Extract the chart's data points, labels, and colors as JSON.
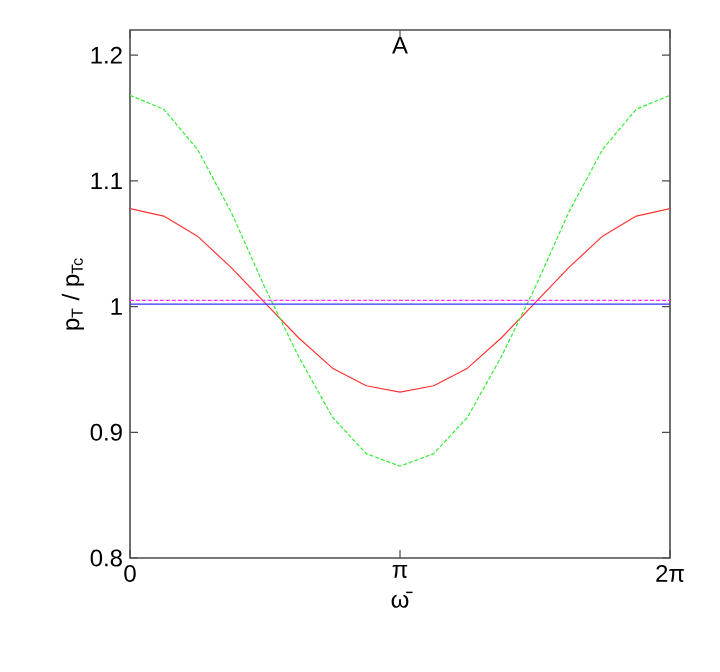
{
  "chart_data": {
    "type": "line",
    "title": "A",
    "xlabel": "ω̄",
    "ylabel": "p$_{T}$ / p$_{Tc}$",
    "xlim": [
      0,
      6.2832
    ],
    "ylim": [
      0.8,
      1.22
    ],
    "xticks": [
      0,
      {
        "value": 3.1416,
        "label": "π"
      },
      {
        "value": 6.2832,
        "label": "2π"
      }
    ],
    "yticks": [
      0.8,
      0.9,
      1,
      1.1,
      1.2
    ],
    "x": [
      0,
      0.3927,
      0.7854,
      1.1781,
      1.5708,
      1.9635,
      2.3562,
      2.7489,
      3.1416,
      3.5343,
      3.927,
      4.3197,
      4.7124,
      5.1051,
      5.4978,
      5.8905,
      6.2832
    ],
    "series": [
      {
        "color": "#ff3333",
        "line_style": "solid",
        "values": [
          1.078,
          1.072,
          1.056,
          1.031,
          1.003,
          0.975,
          0.951,
          0.937,
          0.932,
          0.937,
          0.951,
          0.975,
          1.003,
          1.031,
          1.056,
          1.072,
          1.078
        ]
      },
      {
        "color": "#33ee33",
        "line_style": "dashed",
        "values": [
          1.168,
          1.157,
          1.125,
          1.075,
          1.015,
          0.96,
          0.912,
          0.883,
          0.873,
          0.883,
          0.912,
          0.96,
          1.015,
          1.075,
          1.125,
          1.157,
          1.168
        ]
      },
      {
        "color": "#ff33ff",
        "line_style": "dashed",
        "values": [
          1.005,
          1.005,
          1.005,
          1.005,
          1.005,
          1.005,
          1.005,
          1.005,
          1.005,
          1.005,
          1.005,
          1.005,
          1.005,
          1.005,
          1.005,
          1.005,
          1.005
        ]
      },
      {
        "color": "#3333ff",
        "line_style": "solid",
        "values": [
          1.002,
          1.002,
          1.002,
          1.002,
          1.002,
          1.002,
          1.002,
          1.002,
          1.002,
          1.002,
          1.002,
          1.002,
          1.002,
          1.002,
          1.002,
          1.002,
          1.002
        ]
      }
    ]
  }
}
